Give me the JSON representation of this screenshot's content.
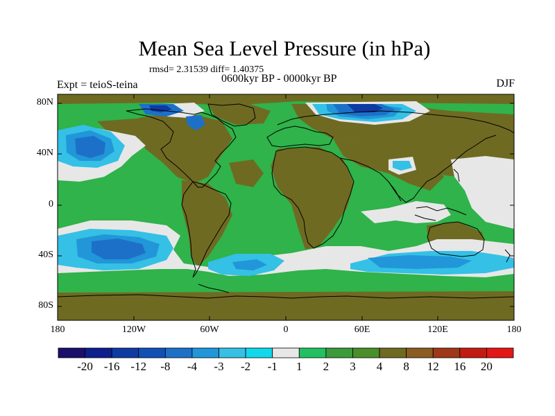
{
  "title": "Mean Sea Level Pressure (in hPa)",
  "stats_text": "rmsd= 2.31539 diff= 1.40375",
  "period_text": "0600kyr BP - 0000kyr BP",
  "experiment_text": "Expt = teioS-teina",
  "season_text": "DJF",
  "lat_labels": [
    "80N",
    "40N",
    "0",
    "40S",
    "80S"
  ],
  "lon_labels": [
    "180",
    "120W",
    "60W",
    "0",
    "60E",
    "120E",
    "180"
  ],
  "colorbar": {
    "labels": [
      "-20",
      "-16",
      "-12",
      "-8",
      "-4",
      "-3",
      "-2",
      "-1",
      "1",
      "2",
      "3",
      "4",
      "8",
      "12",
      "16",
      "20"
    ],
    "colors": [
      "#1a0f6b",
      "#0c1f8c",
      "#0f3aa3",
      "#1250b5",
      "#1d70c8",
      "#2196d8",
      "#35c0e6",
      "#12d8ec",
      "#e7e7e7",
      "#22c060",
      "#3d9a3a",
      "#4a8f2a",
      "#6f6a22",
      "#8a5c22",
      "#9e3818",
      "#c21c12",
      "#e41717"
    ]
  },
  "colors": {
    "ocean_green": "#2fb34a",
    "land_brown": "#6f6a22",
    "neutral": "#e7e7e7",
    "cyan": "#35c0e6",
    "light_blue": "#2196d8",
    "blue": "#1d70c8",
    "dark_blue": "#0f3aa3"
  }
}
